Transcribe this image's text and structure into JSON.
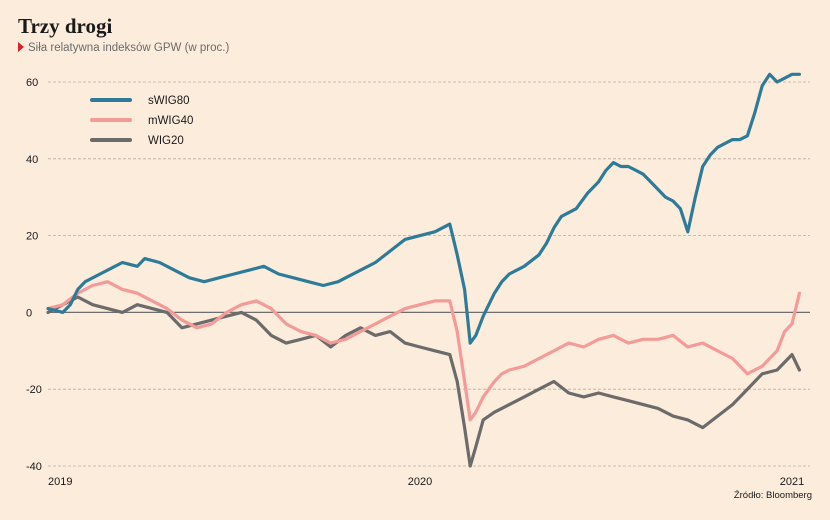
{
  "header": {
    "title": "Trzy drogi",
    "subtitle": "Siła relatywna indeksów GPW (w proc.)"
  },
  "footer": {
    "source": "Źródło: Bloomberg"
  },
  "chart_data": {
    "type": "line",
    "title": "Trzy drogi",
    "subtitle": "Siła relatywna indeksów GPW (w proc.)",
    "xlabel": "",
    "ylabel": "",
    "xlim": [
      2019.0,
      2021.05
    ],
    "ylim": [
      -42,
      64
    ],
    "x_ticks": [
      2019,
      2020,
      2021
    ],
    "x_tick_labels": [
      "2019",
      "2020",
      "2021"
    ],
    "y_ticks": [
      60,
      40,
      20,
      0,
      -20,
      -40
    ],
    "y_tick_labels": [
      "60",
      "40",
      "20",
      "0",
      "-20",
      "-40"
    ],
    "grid": "horizontal dashed",
    "zero_line": true,
    "legend_position": "top-left",
    "series": [
      {
        "name": "sWIG80",
        "color": "#2e7b99",
        "x": [
          2019.0,
          2019.04,
          2019.06,
          2019.08,
          2019.1,
          2019.14,
          2019.18,
          2019.2,
          2019.24,
          2019.26,
          2019.3,
          2019.34,
          2019.38,
          2019.42,
          2019.46,
          2019.5,
          2019.54,
          2019.58,
          2019.62,
          2019.66,
          2019.7,
          2019.74,
          2019.78,
          2019.8,
          2019.84,
          2019.88,
          2019.92,
          2019.96,
          2020.0,
          2020.04,
          2020.08,
          2020.1,
          2020.12,
          2020.135,
          2020.15,
          2020.17,
          2020.2,
          2020.22,
          2020.24,
          2020.28,
          2020.32,
          2020.34,
          2020.36,
          2020.38,
          2020.42,
          2020.45,
          2020.48,
          2020.5,
          2020.52,
          2020.54,
          2020.56,
          2020.58,
          2020.6,
          2020.62,
          2020.64,
          2020.66,
          2020.68,
          2020.7,
          2020.72,
          2020.74,
          2020.76,
          2020.78,
          2020.8,
          2020.82,
          2020.84,
          2020.86,
          2020.88,
          2020.9,
          2020.92,
          2020.94,
          2020.96,
          2020.98,
          2021.0,
          2021.02
        ],
        "values": [
          1,
          0,
          2,
          6,
          8,
          10,
          12,
          13,
          12,
          14,
          13,
          11,
          9,
          8,
          9,
          10,
          11,
          12,
          10,
          9,
          8,
          7,
          8,
          9,
          11,
          13,
          16,
          19,
          20,
          21,
          23,
          15,
          6,
          -8,
          -6,
          -1,
          5,
          8,
          10,
          12,
          15,
          18,
          22,
          25,
          27,
          31,
          34,
          37,
          39,
          38,
          38,
          37,
          36,
          34,
          32,
          30,
          29,
          27,
          21,
          30,
          38,
          41,
          43,
          44,
          45,
          45,
          46,
          52,
          59,
          62,
          60,
          61,
          62,
          62
        ]
      },
      {
        "name": "mWIG40",
        "color": "#f49a98",
        "x": [
          2019.0,
          2019.04,
          2019.08,
          2019.12,
          2019.16,
          2019.2,
          2019.24,
          2019.28,
          2019.32,
          2019.36,
          2019.4,
          2019.44,
          2019.48,
          2019.52,
          2019.56,
          2019.6,
          2019.64,
          2019.68,
          2019.72,
          2019.76,
          2019.8,
          2019.84,
          2019.88,
          2019.92,
          2019.96,
          2020.0,
          2020.04,
          2020.08,
          2020.1,
          2020.12,
          2020.135,
          2020.15,
          2020.17,
          2020.2,
          2020.22,
          2020.24,
          2020.28,
          2020.32,
          2020.36,
          2020.4,
          2020.44,
          2020.48,
          2020.52,
          2020.56,
          2020.6,
          2020.64,
          2020.68,
          2020.72,
          2020.76,
          2020.8,
          2020.84,
          2020.88,
          2020.92,
          2020.96,
          2020.98,
          2021.0,
          2021.02
        ],
        "values": [
          1,
          2,
          5,
          7,
          8,
          6,
          5,
          3,
          1,
          -2,
          -4,
          -3,
          0,
          2,
          3,
          1,
          -3,
          -5,
          -6,
          -8,
          -7,
          -5,
          -3,
          -1,
          1,
          2,
          3,
          3,
          -5,
          -18,
          -28,
          -26,
          -22,
          -18,
          -16,
          -15,
          -14,
          -12,
          -10,
          -8,
          -9,
          -7,
          -6,
          -8,
          -7,
          -7,
          -6,
          -9,
          -8,
          -10,
          -12,
          -16,
          -14,
          -10,
          -5,
          -3,
          5
        ]
      },
      {
        "name": "WIG20",
        "color": "#6b6b6b",
        "x": [
          2019.0,
          2019.04,
          2019.08,
          2019.12,
          2019.16,
          2019.2,
          2019.24,
          2019.28,
          2019.32,
          2019.36,
          2019.4,
          2019.44,
          2019.48,
          2019.52,
          2019.56,
          2019.6,
          2019.64,
          2019.68,
          2019.72,
          2019.76,
          2019.8,
          2019.84,
          2019.88,
          2019.92,
          2019.96,
          2020.0,
          2020.04,
          2020.08,
          2020.1,
          2020.12,
          2020.135,
          2020.15,
          2020.17,
          2020.2,
          2020.22,
          2020.24,
          2020.28,
          2020.32,
          2020.36,
          2020.4,
          2020.44,
          2020.48,
          2020.52,
          2020.56,
          2020.6,
          2020.64,
          2020.68,
          2020.72,
          2020.76,
          2020.8,
          2020.84,
          2020.88,
          2020.92,
          2020.96,
          2020.98,
          2021.0,
          2021.02
        ],
        "values": [
          0,
          2,
          4,
          2,
          1,
          0,
          2,
          1,
          0,
          -4,
          -3,
          -2,
          -1,
          0,
          -2,
          -6,
          -8,
          -7,
          -6,
          -9,
          -6,
          -4,
          -6,
          -5,
          -8,
          -9,
          -10,
          -11,
          -18,
          -30,
          -40,
          -35,
          -28,
          -26,
          -25,
          -24,
          -22,
          -20,
          -18,
          -21,
          -22,
          -21,
          -22,
          -23,
          -24,
          -25,
          -27,
          -28,
          -30,
          -27,
          -24,
          -20,
          -16,
          -15,
          -13,
          -11,
          -15
        ]
      }
    ]
  }
}
